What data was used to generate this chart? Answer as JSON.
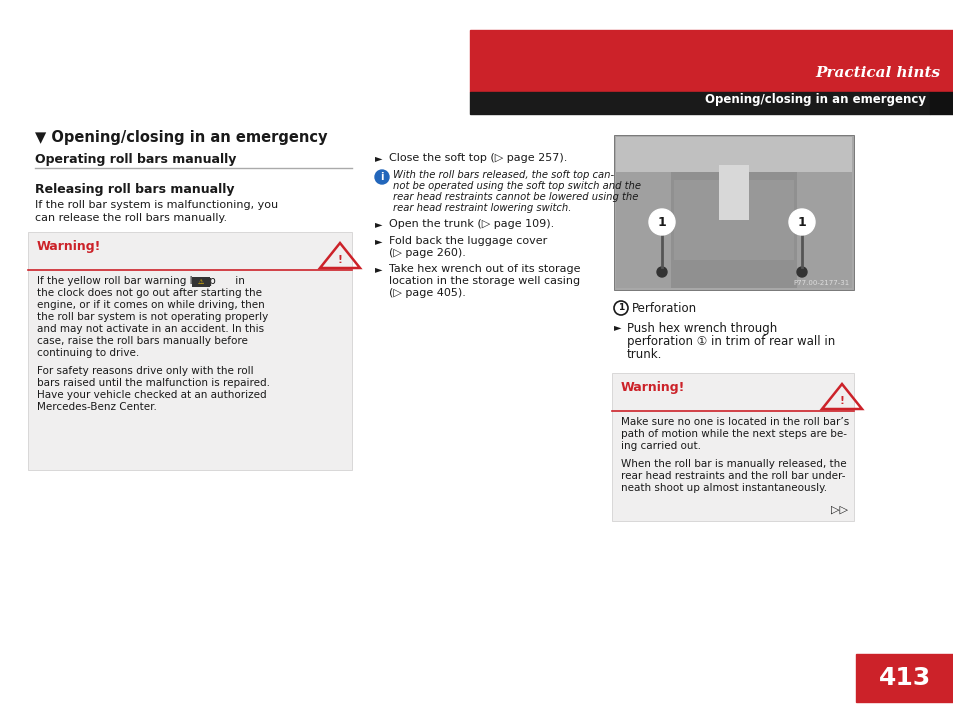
{
  "bg_color": "#ffffff",
  "red_color": "#cc2229",
  "dark_color": "#1a1a1a",
  "light_gray": "#f0efef",
  "med_gray": "#888888",
  "page_number": "413",
  "practical_hints_text": "Practical hints",
  "section_header": "Opening/closing in an emergency",
  "title_text": "Opening/closing in an emergency",
  "subsection1": "Operating roll bars manually",
  "subsection2": "Releasing roll bars manually",
  "body1_line1": "If the roll bar system is malfunctioning, you",
  "body1_line2": "can release the roll bars manually.",
  "warning_title": "Warning!",
  "warning_body1_lines": [
    "If the yellow roll bar warning lamp      in",
    "the clock does not go out after starting the",
    "engine, or if it comes on while driving, then",
    "the roll bar system is not operating properly",
    "and may not activate in an accident. In this",
    "case, raise the roll bars manually before",
    "continuing to drive."
  ],
  "warning_body2_lines": [
    "For safety reasons drive only with the roll",
    "bars raised until the malfunction is repaired.",
    "Have your vehicle checked at an authorized",
    "Mercedes-Benz Center."
  ],
  "bullet1": "Close the soft top (▷ page 257).",
  "info_lines": [
    "With the roll bars released, the soft top can-",
    "not be operated using the soft top switch and the",
    "rear head restraints cannot be lowered using the",
    "rear head restraint lowering switch."
  ],
  "bullet2": "Open the trunk (▷ page 109).",
  "bullet3_lines": [
    "Fold back the luggage cover",
    "(▷ page 260)."
  ],
  "bullet4_lines": [
    "Take hex wrench out of its storage",
    "location in the storage well casing",
    "(▷ page 405)."
  ],
  "perf_label": "Perforation",
  "push_lines": [
    "Push hex wrench through",
    "perforation ① in trim of rear wall in",
    "trunk."
  ],
  "warning2_title": "Warning!",
  "warning2_body1_lines": [
    "Make sure no one is located in the roll bar’s",
    "path of motion while the next steps are be-",
    "ing carried out."
  ],
  "warning2_body2_lines": [
    "When the roll bar is manually released, the",
    "rear head restraints and the roll bar under-",
    "neath shoot up almost instantaneously."
  ],
  "continue_arrow": "▷▷",
  "photo_credit": "P77.00-2177-31",
  "photo_gray1": "#a8a8a8",
  "photo_gray2": "#909090",
  "photo_gray3": "#c0c0c0",
  "photo_gray4": "#b8b8b8",
  "photo_gray5": "#787878"
}
